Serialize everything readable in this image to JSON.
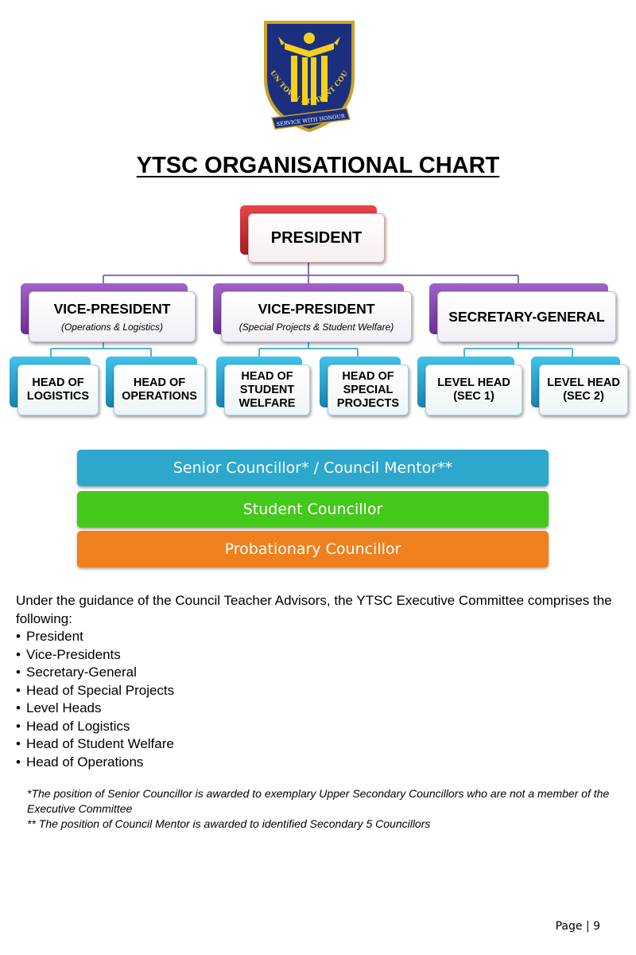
{
  "crest": {
    "motto_arc": "YISHUN TOWN STUDENT COUNCIL",
    "ribbon": "SERVICE WITH HONOUR"
  },
  "title": "YTSC ORGANISATIONAL CHART",
  "org": {
    "president": "PRESIDENT",
    "vp_ops": {
      "title": "VICE-PRESIDENT",
      "subtitle": "(Operations & Logistics)"
    },
    "vp_special": {
      "title": "VICE-PRESIDENT",
      "subtitle": "(Special Projects & Student Welfare)"
    },
    "secgen": "SECRETARY-GENERAL",
    "head_logistics": "HEAD OF\nLOGISTICS",
    "head_operations": "HEAD OF\nOPERATIONS",
    "head_welfare": "HEAD OF\nSTUDENT\nWELFARE",
    "head_special": "HEAD OF\nSPECIAL\nPROJECTS",
    "level_sec1": "LEVEL HEAD\n(SEC 1)",
    "level_sec2": "LEVEL HEAD\n(SEC 2)"
  },
  "tiers": [
    {
      "label": "Senior Councillor* / Council Mentor**",
      "color": "#2da8cc"
    },
    {
      "label": "Student Councillor",
      "color": "#45c81c"
    },
    {
      "label": "Probationary Councillor",
      "color": "#f0801e"
    }
  ],
  "intro": "Under the guidance of the Council Teacher Advisors, the YTSC Executive Committee comprises the following:",
  "members": [
    "President",
    "Vice-Presidents",
    "Secretary-General",
    "Head of Special Projects",
    "Level Heads",
    "Head of Logistics",
    "Head of Student Welfare",
    "Head of Operations"
  ],
  "notes": [
    "*The position of Senior Councillor is awarded to exemplary Upper Secondary Councillors who are not a member of the Executive Committee",
    "** The position of Council Mentor is awarded to identified Secondary 5 Councillors"
  ],
  "footer": "Page | 9",
  "colors": {
    "president": "#c8272c",
    "vice": "#7d3aa8",
    "head": "#2aa0cc",
    "connector": "#8a6fb0"
  }
}
